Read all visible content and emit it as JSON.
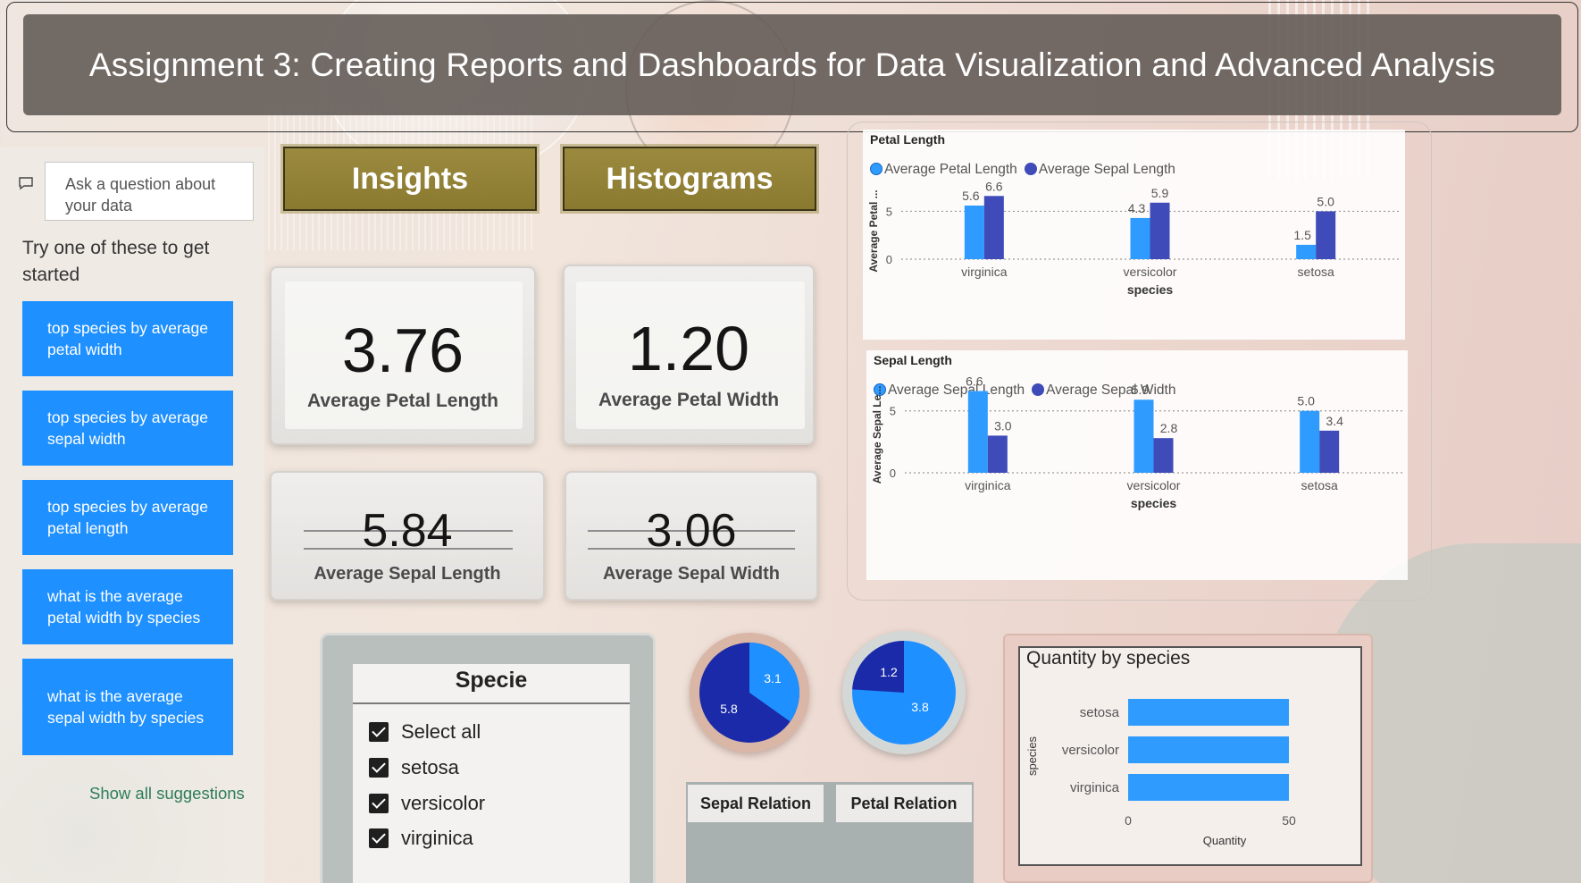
{
  "header": {
    "title": "Assignment 3: Creating Reports and Dashboards for Data Visualization and Advanced Analysis"
  },
  "qa": {
    "input_placeholder": "Ask a question about your data",
    "try_text": "Try one of these to get started",
    "suggestions": [
      "top species by average petal width",
      "top species by average sepal width",
      "top species by average petal length",
      "what is the average petal width by species",
      "what is the average sepal width by species"
    ],
    "show_all": "Show all suggestions"
  },
  "nav": {
    "insights": "Insights",
    "histograms": "Histograms"
  },
  "kpis": {
    "petal_length": {
      "value": "3.76",
      "label": "Average Petal Length"
    },
    "petal_width": {
      "value": "1.20",
      "label": "Average Petal Width"
    },
    "sepal_length": {
      "value": "5.84",
      "label": "Average Sepal Length"
    },
    "sepal_width": {
      "value": "3.06",
      "label": "Average Sepal Width"
    }
  },
  "colors": {
    "series_light": "#2f9bff",
    "series_dark": "#3f4bb8",
    "pie_dark": "#1a2aa8",
    "pie_light": "#1e90ff",
    "suggestion_bg": "#1e90ff"
  },
  "chart_data": [
    {
      "type": "bar",
      "title": "Petal Length",
      "xlabel": "species",
      "ylabel": "Average Petal ...",
      "categories": [
        "virginica",
        "versicolor",
        "setosa"
      ],
      "series": [
        {
          "name": "Average Petal Length",
          "values": [
            5.6,
            4.3,
            1.5
          ],
          "labels": [
            "5.6",
            "4.3",
            "1.5"
          ]
        },
        {
          "name": "Average Sepal Length",
          "values": [
            6.6,
            5.9,
            5.0
          ],
          "labels": [
            "6.6",
            "5.9",
            "5.0"
          ]
        }
      ],
      "y_ticks": [
        "0",
        "5"
      ],
      "ylim": [
        0,
        7
      ],
      "legend": "top-left"
    },
    {
      "type": "bar",
      "title": "Sepal Length",
      "xlabel": "species",
      "ylabel": "Average Sepal Le...",
      "categories": [
        "virginica",
        "versicolor",
        "setosa"
      ],
      "series": [
        {
          "name": "Average Sepal Length",
          "values": [
            6.6,
            5.9,
            5.0
          ],
          "labels": [
            "6.6",
            "5.9",
            "5.0"
          ]
        },
        {
          "name": "Average Sepal Width",
          "values": [
            3.0,
            2.8,
            3.4
          ],
          "labels": [
            "3.0",
            "2.8",
            "3.4"
          ]
        }
      ],
      "y_ticks": [
        "0",
        "5"
      ],
      "ylim": [
        0,
        7
      ],
      "legend": "top-left"
    },
    {
      "type": "pie",
      "values": [
        5.8,
        3.1
      ],
      "labels": [
        "5.8",
        "3.1"
      ]
    },
    {
      "type": "pie",
      "values": [
        1.2,
        3.8
      ],
      "labels": [
        "1.2",
        "3.8"
      ]
    },
    {
      "type": "bar",
      "orientation": "horizontal",
      "title": "Quantity by species",
      "xlabel": "Quantity",
      "ylabel": "species",
      "categories": [
        "setosa",
        "versicolor",
        "virginica"
      ],
      "values": [
        50,
        50,
        50
      ],
      "x_ticks": [
        "0",
        "50"
      ],
      "xlim": [
        0,
        50
      ]
    }
  ],
  "slicer": {
    "title": "Specie",
    "items": [
      "Select all",
      "setosa",
      "versicolor",
      "virginica"
    ]
  },
  "relations": {
    "sepal": "Sepal Relation",
    "petal": "Petal Relation"
  }
}
